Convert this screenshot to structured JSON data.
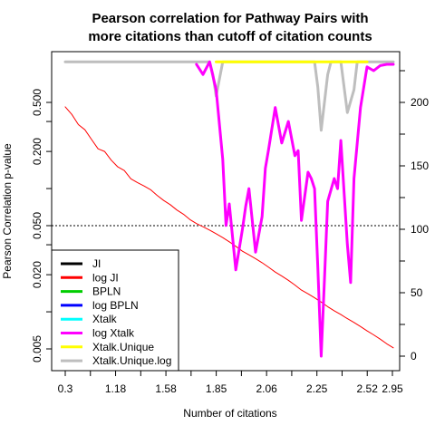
{
  "chart_data": {
    "type": "line",
    "title_lines": [
      "Pearson correlation for Pathway Pairs with",
      "more citations than cutoff of citation counts"
    ],
    "xlabel": "Number of citations",
    "ylabel": "Pearson Correlation p-value",
    "x_tick_labels": [
      "0.3",
      "1.18",
      "1.58",
      "1.85",
      "2.06",
      "2.25",
      "2.52",
      "2.95"
    ],
    "y_left": {
      "scale": "log",
      "ticks": [
        0.005,
        0.02,
        0.05,
        0.2,
        0.5
      ],
      "tick_labels": [
        "0.005",
        "0.020",
        "0.050",
        "0.200",
        "0.500"
      ],
      "reference_line": 0.05
    },
    "y_right": {
      "ticks": [
        0,
        50,
        100,
        150,
        200
      ],
      "tick_labels": [
        "0",
        "50",
        "100",
        "150",
        "200"
      ]
    },
    "legend": {
      "position": "bottom-left",
      "entries": [
        {
          "name": "JI",
          "color": "#000000"
        },
        {
          "name": "log JI",
          "color": "#ff0000"
        },
        {
          "name": "BPLN",
          "color": "#00cd00"
        },
        {
          "name": "log BPLN",
          "color": "#0000ff"
        },
        {
          "name": "Xtalk",
          "color": "#00ffff"
        },
        {
          "name": "log Xtalk",
          "color": "#ff00ff"
        },
        {
          "name": "Xtalk.Unique",
          "color": "#ffff00"
        },
        {
          "name": "Xtalk.Unique.log",
          "color": "#bebebe"
        }
      ]
    },
    "series": [
      {
        "name": "log JI",
        "color": "#ff0000",
        "axis": "left",
        "x_index": [
          0,
          2,
          4,
          6,
          8,
          10,
          12,
          14,
          16,
          18,
          20,
          22,
          24,
          26,
          28,
          30,
          32,
          34,
          36,
          38,
          40,
          42,
          44,
          46,
          48,
          50,
          52,
          54,
          56,
          58,
          60,
          62,
          64,
          66,
          68,
          70,
          72,
          74,
          76,
          78,
          80,
          82,
          84,
          86,
          88,
          90,
          92,
          94,
          96,
          98,
          100
        ],
        "values": [
          0.46,
          0.4,
          0.33,
          0.3,
          0.25,
          0.21,
          0.2,
          0.17,
          0.15,
          0.14,
          0.12,
          0.112,
          0.105,
          0.098,
          0.088,
          0.08,
          0.074,
          0.067,
          0.062,
          0.056,
          0.052,
          0.049,
          0.046,
          0.043,
          0.04,
          0.037,
          0.034,
          0.031,
          0.029,
          0.027,
          0.025,
          0.023,
          0.021,
          0.0195,
          0.018,
          0.0165,
          0.015,
          0.014,
          0.013,
          0.012,
          0.011,
          0.0102,
          0.0095,
          0.0088,
          0.0082,
          0.0076,
          0.007,
          0.0065,
          0.006,
          0.0055,
          0.0051
        ]
      },
      {
        "name": "log Xtalk",
        "color": "#ff00ff",
        "axis": "right",
        "x_index": [
          40,
          42,
          44,
          46,
          48,
          49,
          50,
          52,
          54,
          55,
          56,
          58,
          60,
          61,
          62,
          64,
          66,
          68,
          70,
          71,
          72,
          74,
          75,
          76,
          77,
          78,
          79,
          80,
          82,
          83,
          84,
          86,
          87,
          88,
          90,
          92,
          94,
          96,
          98,
          100
        ],
        "values": [
          230,
          222,
          232,
          210,
          155,
          103,
          120,
          68,
          100,
          118,
          132,
          82,
          110,
          148,
          163,
          196,
          168,
          185,
          158,
          162,
          107,
          145,
          140,
          132,
          70,
          0,
          60,
          122,
          140,
          132,
          170,
          88,
          58,
          140,
          196,
          228,
          225,
          229,
          230,
          230
        ]
      },
      {
        "name": "Xtalk.Unique.log",
        "color": "#bebebe",
        "axis": "right",
        "x_index": [
          0,
          42,
          44,
          45,
          46,
          48,
          50,
          51,
          52,
          53,
          54,
          56,
          58,
          60,
          62,
          64,
          66,
          68,
          70,
          72,
          74,
          76,
          77,
          78,
          80,
          81,
          82,
          84,
          86,
          88,
          89,
          90,
          91,
          92,
          100
        ],
        "values": [
          232,
          232,
          232,
          222,
          205,
          232,
          232,
          232,
          232,
          232,
          232,
          232,
          232,
          232,
          232,
          232,
          232,
          232,
          232,
          232,
          232,
          232,
          212,
          178,
          222,
          232,
          232,
          232,
          192,
          210,
          232,
          232,
          232,
          232,
          232
        ]
      },
      {
        "name": "Xtalk.Unique",
        "color": "#ffff00",
        "axis": "right",
        "x_index": [
          46,
          47,
          48,
          49,
          50,
          78,
          79,
          80,
          81,
          82,
          88,
          89,
          90,
          91,
          92
        ],
        "values": [
          232,
          232,
          232,
          232,
          232,
          232,
          232,
          232,
          232,
          232,
          232,
          232,
          232,
          232,
          232
        ]
      }
    ]
  }
}
